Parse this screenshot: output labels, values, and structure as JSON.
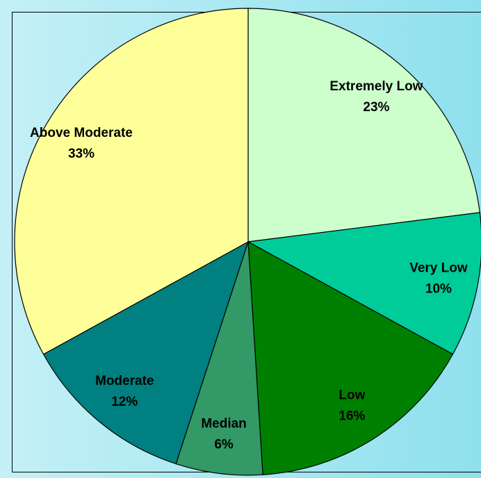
{
  "chart_data": {
    "type": "pie",
    "categories": [
      "Extremely Low",
      "Very Low",
      "Low",
      "Median",
      "Moderate",
      "Above Moderate"
    ],
    "values": [
      23,
      10,
      16,
      6,
      12,
      33
    ],
    "value_labels": [
      "23%",
      "10%",
      "16%",
      "6%",
      "12%",
      "33%"
    ],
    "colors": [
      "#ccffcc",
      "#00cc99",
      "#008000",
      "#339966",
      "#008080",
      "#ffff99"
    ]
  }
}
